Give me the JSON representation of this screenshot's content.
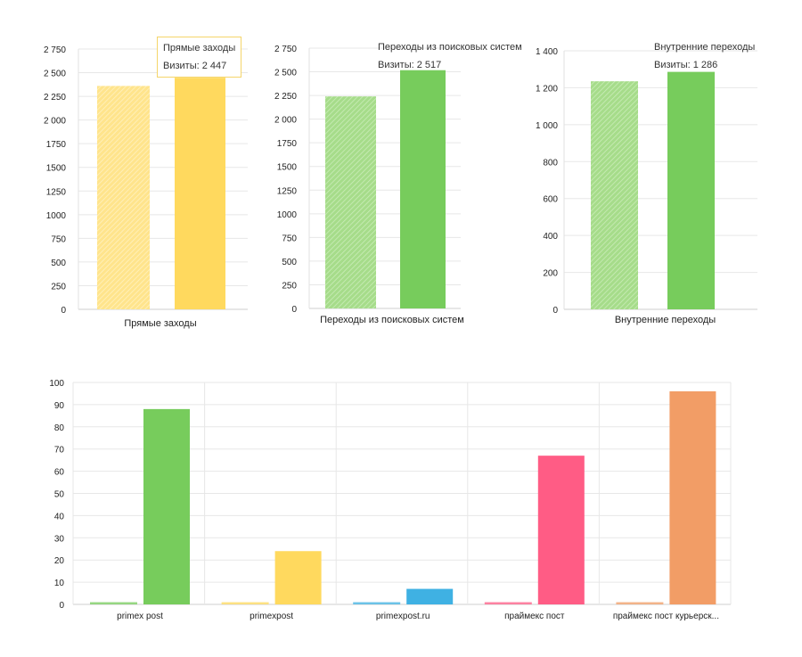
{
  "chart_data": [
    {
      "type": "bar",
      "categories": [
        "Прямые заходы"
      ],
      "series": [
        {
          "values": [
            2360
          ],
          "color": "#ffe48c"
        },
        {
          "values": [
            2447
          ],
          "color": "#ffd95e"
        }
      ],
      "yticks": [
        "0",
        "250",
        "500",
        "750",
        "1000",
        "1250",
        "1500",
        "1750",
        "2 000",
        "2 250",
        "2 500",
        "2 750"
      ],
      "ylim": [
        0,
        2750
      ],
      "grid": true,
      "tooltip": {
        "title": "Прямые заходы",
        "text": "Визиты: 2 447"
      }
    },
    {
      "type": "bar",
      "categories": [
        "Переходы из поисковых систем"
      ],
      "series": [
        {
          "values": [
            2240
          ],
          "color": "#a6dc8a"
        },
        {
          "values": [
            2517
          ],
          "color": "#77cc5c"
        }
      ],
      "yticks": [
        "0",
        "250",
        "500",
        "750",
        "1000",
        "1250",
        "1500",
        "1750",
        "2 000",
        "2 250",
        "2 500",
        "2 750"
      ],
      "ylim": [
        0,
        2750
      ],
      "grid": true,
      "tooltip": {
        "title": "Переходы из поисковых систем",
        "text": "Визиты: 2 517"
      }
    },
    {
      "type": "bar",
      "categories": [
        "Внутренние переходы"
      ],
      "series": [
        {
          "values": [
            1235
          ],
          "color": "#a6dc8a"
        },
        {
          "values": [
            1286
          ],
          "color": "#77cc5c"
        }
      ],
      "yticks": [
        "0",
        "200",
        "400",
        "600",
        "800",
        "1 000",
        "1 200",
        "1 400"
      ],
      "ylim": [
        0,
        1400
      ],
      "grid": true,
      "tooltip": {
        "title": "Внутренние переходы",
        "text": "Визиты: 1 286"
      }
    },
    {
      "type": "bar",
      "categories": [
        "primex post",
        "primexpost",
        "primexpost.ru",
        "праймекс пост",
        "праймекс пост курьерск..."
      ],
      "series": [
        {
          "values": [
            0.6,
            0.6,
            0.6,
            0.6,
            0.6
          ]
        },
        {
          "values": [
            88,
            24,
            7,
            67,
            96
          ]
        }
      ],
      "colors": [
        "#77cc5c",
        "#ffd95e",
        "#3fb1e3",
        "#ff5c85",
        "#f29d66"
      ],
      "yticks": [
        "0",
        "10",
        "20",
        "30",
        "40",
        "50",
        "60",
        "70",
        "80",
        "90",
        "100"
      ],
      "ylim": [
        0,
        100
      ],
      "grid": true
    }
  ]
}
